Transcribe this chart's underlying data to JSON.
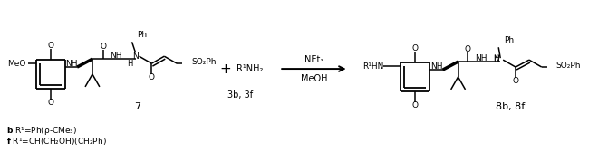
{
  "figsize": [
    6.71,
    1.68
  ],
  "dpi": 100,
  "background_color": "#ffffff",
  "label_7": "7",
  "label_3b3f": "3b, 3f",
  "label_8b8f": "8b, 8f",
  "arrow_label_top": "NEt₃",
  "arrow_label_bottom": "MeOH",
  "plus_sign": "+",
  "R1NH2": "R¹NH₂",
  "MeO": "MeO",
  "O": "O",
  "NH": "NH",
  "H": "H",
  "N": "N",
  "Ph": "Ph",
  "SO2Ph": "SO₂Ph",
  "R1HN": "R¹HN",
  "footnote_b": "b R¹=Ph(p-CMe₃)",
  "footnote_f": "f R¹=CH(CH₂OH)(CH₂Ph)"
}
